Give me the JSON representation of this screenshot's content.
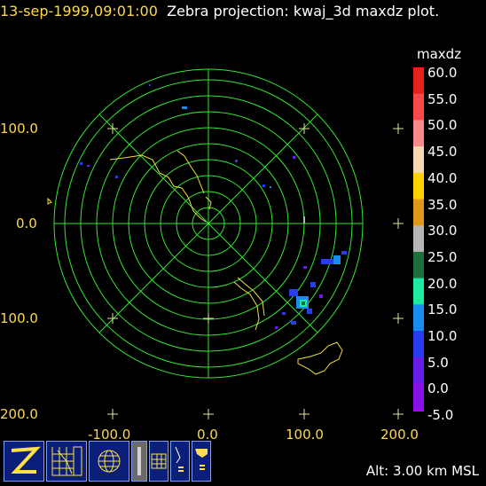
{
  "title": {
    "datetime": "13-sep-1999,09:01:00",
    "text": "Zebra projection: kwaj_3d maxdz plot."
  },
  "axes": {
    "y_labels": [
      "100.0",
      "0.0",
      "100.0",
      "200.0"
    ],
    "x_labels": [
      "-100.0",
      "0.0",
      "100.0",
      "200.0"
    ]
  },
  "color_scale": {
    "field": "maxdz",
    "entries": [
      {
        "label": "60.0",
        "color": "#e8201e"
      },
      {
        "label": "55.0",
        "color": "#f7484a"
      },
      {
        "label": "50.0",
        "color": "#f88a8a"
      },
      {
        "label": "45.0",
        "color": "#f5d9b0"
      },
      {
        "label": "40.0",
        "color": "#ffd200"
      },
      {
        "label": "35.0",
        "color": "#e09a1a"
      },
      {
        "label": "30.0",
        "color": "#b5b5b5"
      },
      {
        "label": "25.0",
        "color": "#1f6f3a"
      },
      {
        "label": "20.0",
        "color": "#1fe9a0"
      },
      {
        "label": "15.0",
        "color": "#1a8cf0"
      },
      {
        "label": "10.0",
        "color": "#2a3cf0"
      },
      {
        "label": "5.0",
        "color": "#6a1de8"
      },
      {
        "label": "0.0",
        "color": "#8a10e8"
      },
      {
        "label": "-5.0",
        "color": "#b000ff"
      }
    ]
  },
  "status": {
    "altitude": "Alt: 3.00 km MSL"
  },
  "toolbar": [
    {
      "name": "zebra-logo-icon",
      "label": "Z"
    },
    {
      "name": "kwaj-radar-icon",
      "label": "KWAJ"
    },
    {
      "name": "globe-icon",
      "label": ""
    },
    {
      "name": "bounds-icon",
      "label": "BOUNDS"
    },
    {
      "name": "grid-icon",
      "label": ""
    },
    {
      "name": "map-icon",
      "label": "MAP"
    },
    {
      "name": "usa-map-icon",
      "label": "MAP"
    }
  ],
  "colors": {
    "grid": "#33e633",
    "coast": "#f0e040",
    "label": "#ffd84a"
  }
}
